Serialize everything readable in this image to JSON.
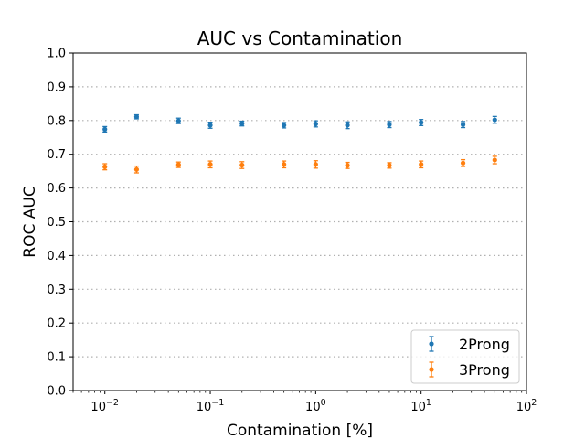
{
  "chart_data": {
    "type": "scatter",
    "title": "AUC vs Contamination",
    "xlabel": "Contamination [%]",
    "ylabel": "ROC AUC",
    "x_scale": "log",
    "xlim": [
      0.005,
      100
    ],
    "ylim": [
      0.0,
      1.0
    ],
    "y_ticks": [
      "0.0",
      "0.1",
      "0.2",
      "0.3",
      "0.4",
      "0.5",
      "0.6",
      "0.7",
      "0.8",
      "0.9",
      "1.0"
    ],
    "x_ticks": [
      {
        "base": "10",
        "exp": "−2",
        "value": 0.01
      },
      {
        "base": "10",
        "exp": "−1",
        "value": 0.1
      },
      {
        "base": "10",
        "exp": "0",
        "value": 1
      },
      {
        "base": "10",
        "exp": "1",
        "value": 10
      },
      {
        "base": "10",
        "exp": "2",
        "value": 100
      }
    ],
    "grid": "horizontal dotted",
    "legend_position": "lower-right",
    "x": [
      0.01,
      0.02,
      0.05,
      0.1,
      0.2,
      0.5,
      1,
      2,
      5,
      10,
      25,
      50
    ],
    "series": [
      {
        "name": "2Prong",
        "color": "#1f77b4",
        "values": [
          0.774,
          0.811,
          0.799,
          0.786,
          0.791,
          0.786,
          0.79,
          0.786,
          0.788,
          0.794,
          0.788,
          0.802
        ],
        "errors": [
          0.008,
          0.006,
          0.008,
          0.009,
          0.007,
          0.008,
          0.009,
          0.01,
          0.009,
          0.009,
          0.009,
          0.01
        ]
      },
      {
        "name": "3Prong",
        "color": "#ff7f0e",
        "values": [
          0.663,
          0.655,
          0.669,
          0.67,
          0.668,
          0.67,
          0.67,
          0.667,
          0.667,
          0.67,
          0.674,
          0.683
        ],
        "errors": [
          0.009,
          0.01,
          0.008,
          0.01,
          0.01,
          0.01,
          0.011,
          0.009,
          0.008,
          0.01,
          0.01,
          0.011
        ]
      }
    ]
  }
}
